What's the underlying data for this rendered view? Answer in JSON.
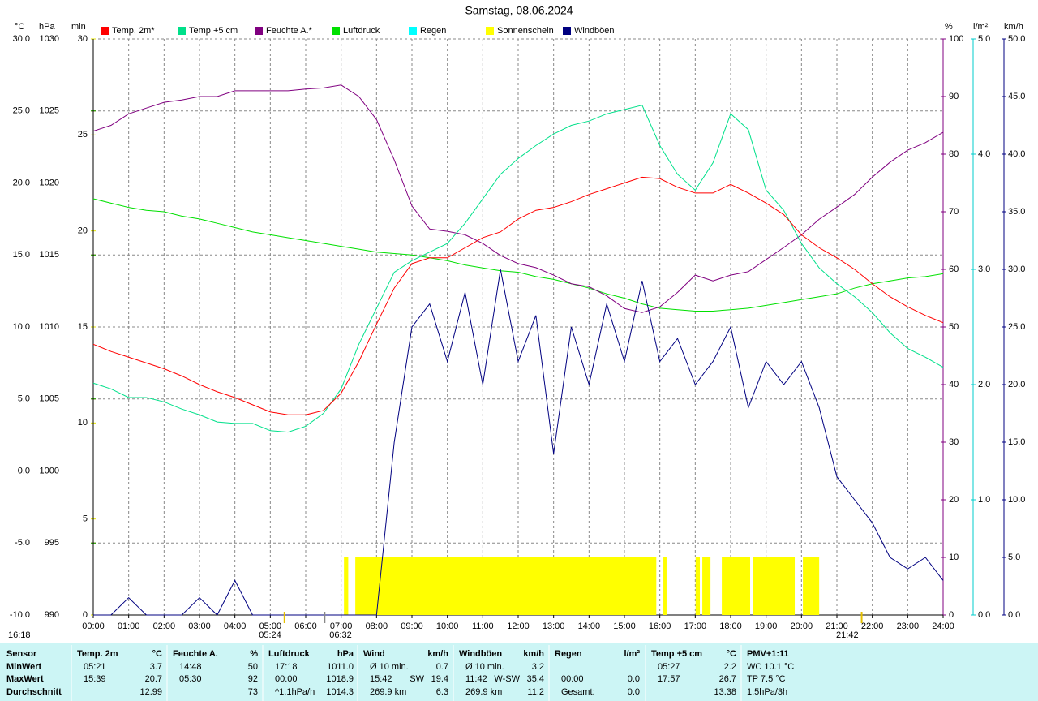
{
  "chart_data": {
    "type": "line",
    "title": "Samstag, 08.06.2024",
    "xlim": [
      0,
      24
    ],
    "xticks": [
      {
        "value": 0,
        "label": "00:00"
      },
      {
        "value": 1,
        "label": "01:00"
      },
      {
        "value": 2,
        "label": "02:00"
      },
      {
        "value": 3,
        "label": "03:00"
      },
      {
        "value": 4,
        "label": "04:00"
      },
      {
        "value": 5,
        "label": "05:00"
      },
      {
        "value": 6,
        "label": "06:00"
      },
      {
        "value": 7,
        "label": "07:00"
      },
      {
        "value": 8,
        "label": "08:00"
      },
      {
        "value": 9,
        "label": "09:00"
      },
      {
        "value": 10,
        "label": "10:00"
      },
      {
        "value": 11,
        "label": "11:00"
      },
      {
        "value": 12,
        "label": "12:00"
      },
      {
        "value": 13,
        "label": "13:00"
      },
      {
        "value": 14,
        "label": "14:00"
      },
      {
        "value": 15,
        "label": "15:00"
      },
      {
        "value": 16,
        "label": "16:00"
      },
      {
        "value": 17,
        "label": "17:00"
      },
      {
        "value": 18,
        "label": "18:00"
      },
      {
        "value": 19,
        "label": "19:00"
      },
      {
        "value": 20,
        "label": "20:00"
      },
      {
        "value": 21,
        "label": "21:00"
      },
      {
        "value": 22,
        "label": "22:00"
      },
      {
        "value": 23,
        "label": "23:00"
      },
      {
        "value": 24,
        "label": "24:00"
      }
    ],
    "grid": true,
    "y_axes": [
      {
        "label": "°C",
        "color": "#ff0000",
        "lim": [
          -10,
          30
        ],
        "ticks": [
          {
            "value": -10,
            "label": "-10.0"
          },
          {
            "value": -5,
            "label": "-5.0"
          },
          {
            "value": 0,
            "label": "0.0"
          },
          {
            "value": 5,
            "label": "5.0"
          },
          {
            "value": 10,
            "label": "10.0"
          },
          {
            "value": 15,
            "label": "15.0"
          },
          {
            "value": 20,
            "label": "20.0"
          },
          {
            "value": 25,
            "label": "25.0"
          },
          {
            "value": 30,
            "label": "30.0"
          }
        ]
      },
      {
        "label": "hPa",
        "color": "#00c000",
        "lim": [
          990,
          1030
        ],
        "ticks": [
          990,
          995,
          1000,
          1005,
          1010,
          1015,
          1020,
          1025,
          1030
        ]
      },
      {
        "label": "min",
        "color": "#e6e600",
        "lim": [
          0,
          30
        ],
        "ticks": [
          0,
          5,
          10,
          15,
          20,
          25,
          30
        ]
      },
      {
        "label": "%",
        "color": "#800080",
        "lim": [
          0,
          100
        ],
        "ticks": [
          0,
          10,
          20,
          30,
          40,
          50,
          60,
          70,
          80,
          90,
          100
        ]
      },
      {
        "label": "l/m²",
        "color": "#00cccc",
        "lim": [
          0,
          5
        ],
        "ticks": [
          {
            "value": 0,
            "label": "0.0"
          },
          {
            "value": 1,
            "label": "1.0"
          },
          {
            "value": 2,
            "label": "2.0"
          },
          {
            "value": 3,
            "label": "3.0"
          },
          {
            "value": 4,
            "label": "4.0"
          },
          {
            "value": 5,
            "label": "5.0"
          }
        ]
      },
      {
        "label": "km/h",
        "color": "#000080",
        "lim": [
          0,
          50
        ],
        "ticks": [
          {
            "value": 0,
            "label": "0.0"
          },
          {
            "value": 5,
            "label": "5.0"
          },
          {
            "value": 10,
            "label": "10.0"
          },
          {
            "value": 15,
            "label": "15.0"
          },
          {
            "value": 20,
            "label": "20.0"
          },
          {
            "value": 25,
            "label": "25.0"
          },
          {
            "value": 30,
            "label": "30.0"
          },
          {
            "value": 35,
            "label": "35.0"
          },
          {
            "value": 40,
            "label": "40.0"
          },
          {
            "value": 45,
            "label": "45.0"
          },
          {
            "value": 50,
            "label": "50.0"
          }
        ]
      }
    ],
    "x": [
      0,
      0.5,
      1,
      1.5,
      2,
      2.5,
      3,
      3.5,
      4,
      4.5,
      5,
      5.5,
      6,
      6.5,
      7,
      7.5,
      8,
      8.5,
      9,
      9.5,
      10,
      10.5,
      11,
      11.5,
      12,
      12.5,
      13,
      13.5,
      14,
      14.5,
      15,
      15.5,
      16,
      16.5,
      17,
      17.5,
      18,
      18.5,
      19,
      19.5,
      20,
      20.5,
      21,
      21.5,
      22,
      22.5,
      23,
      23.5,
      24
    ],
    "series": [
      {
        "name": "Temp. 2m*",
        "color": "#ff0000",
        "axis": 0,
        "values": [
          8.8,
          8.3,
          7.9,
          7.5,
          7.1,
          6.6,
          6.0,
          5.5,
          5.1,
          4.6,
          4.1,
          3.9,
          3.9,
          4.2,
          5.4,
          7.6,
          10.2,
          12.7,
          14.4,
          14.8,
          14.8,
          15.5,
          16.2,
          16.6,
          17.5,
          18.1,
          18.3,
          18.7,
          19.2,
          19.6,
          20.0,
          20.4,
          20.3,
          19.7,
          19.3,
          19.3,
          19.9,
          19.3,
          18.6,
          17.8,
          16.4,
          15.5,
          14.8,
          14.0,
          13.0,
          12.1,
          11.4,
          10.8,
          10.3
        ]
      },
      {
        "name": "Temp +5 cm",
        "color": "#00e08a",
        "axis": 0,
        "values": [
          6.1,
          5.7,
          5.1,
          5.1,
          4.8,
          4.3,
          3.9,
          3.4,
          3.3,
          3.3,
          2.8,
          2.7,
          3.1,
          4.0,
          5.7,
          8.8,
          11.3,
          13.8,
          14.6,
          15.2,
          15.8,
          17.2,
          18.9,
          20.6,
          21.7,
          22.6,
          23.4,
          24.0,
          24.3,
          24.8,
          25.1,
          25.4,
          22.6,
          20.6,
          19.5,
          21.4,
          24.8,
          23.7,
          19.5,
          18.1,
          15.8,
          14.1,
          13.0,
          12.1,
          11.0,
          9.6,
          8.5,
          7.9,
          7.2
        ]
      },
      {
        "name": "Feuchte A.*",
        "color": "#800080",
        "axis": 3,
        "values": [
          84,
          85,
          87,
          88,
          89,
          89.4,
          90,
          90,
          91,
          91,
          91,
          91,
          91.3,
          91.5,
          92,
          90,
          86,
          79,
          71,
          67,
          66.6,
          66,
          64.5,
          62.4,
          61,
          60.3,
          59,
          57.5,
          57,
          55.4,
          53.2,
          52.5,
          53.5,
          56,
          59,
          58,
          59,
          59.6,
          61.7,
          63.8,
          66,
          68.7,
          70.8,
          73,
          76,
          78.6,
          80.7,
          82,
          83.8
        ]
      },
      {
        "name": "Luftdruck",
        "color": "#00e000",
        "axis": 1,
        "values": [
          1018.9,
          1018.6,
          1018.3,
          1018.1,
          1018.0,
          1017.7,
          1017.5,
          1017.2,
          1016.9,
          1016.6,
          1016.4,
          1016.2,
          1016.0,
          1015.8,
          1015.6,
          1015.4,
          1015.2,
          1015.1,
          1015.0,
          1014.8,
          1014.6,
          1014.3,
          1014.1,
          1013.9,
          1013.8,
          1013.5,
          1013.3,
          1013.0,
          1012.7,
          1012.3,
          1012.0,
          1011.6,
          1011.3,
          1011.2,
          1011.1,
          1011.1,
          1011.2,
          1011.3,
          1011.5,
          1011.7,
          1011.9,
          1012.1,
          1012.3,
          1012.7,
          1013.0,
          1013.2,
          1013.4,
          1013.5,
          1013.7
        ]
      },
      {
        "name": "Regen",
        "color": "#00ffff",
        "axis": 4
      },
      {
        "name": "Sonnenschein",
        "color": "#ffff00",
        "axis": 2,
        "value": 3,
        "spans": [
          [
            7.08,
            7.2
          ],
          [
            7.4,
            15.9
          ],
          [
            16.1,
            16.19
          ],
          [
            17.01,
            17.13
          ],
          [
            17.2,
            17.43
          ],
          [
            17.75,
            18.55
          ],
          [
            18.62,
            19.81
          ],
          [
            20.04,
            20.5
          ]
        ]
      },
      {
        "name": "Windböen",
        "color": "#000080",
        "axis": 5,
        "values": [
          0,
          0,
          1.5,
          0,
          0,
          0,
          1.5,
          0,
          3,
          0,
          0,
          0,
          0,
          0,
          0,
          0,
          0,
          15,
          25,
          27,
          22,
          28,
          20,
          30,
          22,
          26,
          14,
          25,
          20,
          27,
          22,
          29,
          22,
          24,
          20,
          22,
          25,
          18,
          22,
          20,
          22,
          18,
          12,
          10,
          8,
          5,
          4,
          5,
          3
        ]
      }
    ],
    "annotations": [
      {
        "label": "05:24",
        "x": 5.4
      },
      {
        "label": "06:32",
        "x": 6.533
      },
      {
        "label": "21:42",
        "x": 21.7
      }
    ],
    "updated": "16:18"
  },
  "stats": {
    "header": "Sensor",
    "row_labels": [
      "MinWert",
      "MaxWert",
      "Durchschnitt"
    ],
    "columns": [
      {
        "name": "Temp. 2m",
        "unit": "°C",
        "rows": [
          {
            "left": "05:21",
            "right": "3.7"
          },
          {
            "left": "15:39",
            "right": "20.7"
          },
          {
            "right": "12.99"
          }
        ]
      },
      {
        "name": "Feuchte A.",
        "unit": "%",
        "rows": [
          {
            "left": "14:48",
            "right": "50"
          },
          {
            "left": "05:30",
            "right": "92"
          },
          {
            "right": "73"
          }
        ]
      },
      {
        "name": "Luftdruck",
        "unit": "hPa",
        "rows": [
          {
            "left": "17:18",
            "right": "1011.0"
          },
          {
            "left": "00:00",
            "right": "1018.9"
          },
          {
            "left": "^1.1hPa/h",
            "right": "1014.3"
          }
        ]
      },
      {
        "name": "Wind",
        "unit": "km/h",
        "rows": [
          {
            "left": "Ø 10 min.",
            "right": "0.7"
          },
          {
            "left": "15:42",
            "mid": "SW",
            "right": "19.4"
          },
          {
            "left": "269.9 km",
            "right": "6.3"
          }
        ]
      },
      {
        "name": "Windböen",
        "unit": "km/h",
        "rows": [
          {
            "left": "Ø 10 min.",
            "right": "3.2"
          },
          {
            "left": "11:42",
            "mid": "W-SW",
            "right": "35.4"
          },
          {
            "left": "269.9 km",
            "right": "11.2"
          }
        ]
      },
      {
        "name": "Regen",
        "unit": "l/m²",
        "rows": [
          {},
          {
            "left": "00:00",
            "right": "0.0"
          },
          {
            "left": "Gesamt:",
            "right": "0.0"
          }
        ]
      },
      {
        "name": "Temp +5 cm",
        "unit": "°C",
        "rows": [
          {
            "left": "05:27",
            "right": "2.2"
          },
          {
            "left": "17:57",
            "right": "26.7"
          },
          {
            "right": "13.38"
          }
        ]
      },
      {
        "name": "PMV+1:11",
        "rows": [
          {
            "left": "WC 10.1 °C"
          },
          {
            "left": "TP 7.5 °C"
          },
          {
            "left": "1.5hPa/3h"
          }
        ]
      }
    ]
  }
}
